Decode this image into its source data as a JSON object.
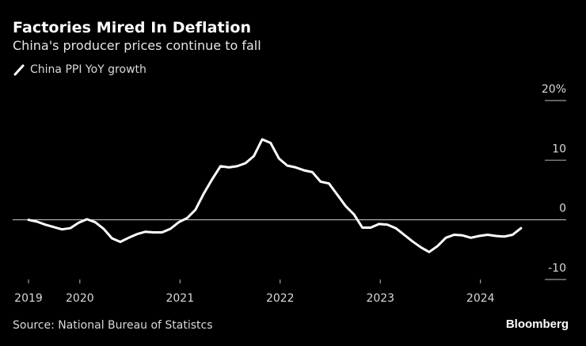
{
  "header": {
    "title": "Factories Mired In Deflation",
    "subtitle": "China's producer prices continue to fall"
  },
  "legend": {
    "items": [
      {
        "label": "China PPI YoY growth",
        "color": "#ffffff",
        "icon": "line-swatch-icon"
      }
    ]
  },
  "footer": {
    "source": "Source: National Bureau of Statistcs",
    "brand": "Bloomberg"
  },
  "chart_data": {
    "type": "line",
    "title": "Factories Mired In Deflation",
    "subtitle": "China's producer prices continue to fall",
    "xlabel": "",
    "ylabel": "",
    "ylim": [
      -10,
      20
    ],
    "yticks": [
      20,
      10,
      0,
      -10
    ],
    "ytick_labels": [
      "20%",
      "10",
      "0",
      "-10"
    ],
    "y_axis_side": "right",
    "grid": "horizontal",
    "legend_position": "top-left",
    "xticks": [
      "2019",
      "2020",
      "2021",
      "2022",
      "2023",
      "2024"
    ],
    "x_start": "2019-06",
    "series": [
      {
        "name": "China PPI YoY growth",
        "color": "#ffffff",
        "x": [
          "2019-06",
          "2019-07",
          "2019-08",
          "2019-09",
          "2019-10",
          "2019-11",
          "2019-12",
          "2020-01",
          "2020-02",
          "2020-03",
          "2020-04",
          "2020-05",
          "2020-06",
          "2020-07",
          "2020-08",
          "2020-09",
          "2020-10",
          "2020-11",
          "2020-12",
          "2021-01",
          "2021-02",
          "2021-03",
          "2021-04",
          "2021-05",
          "2021-06",
          "2021-07",
          "2021-08",
          "2021-09",
          "2021-10",
          "2021-11",
          "2021-12",
          "2022-01",
          "2022-02",
          "2022-03",
          "2022-04",
          "2022-05",
          "2022-06",
          "2022-07",
          "2022-08",
          "2022-09",
          "2022-10",
          "2022-11",
          "2022-12",
          "2023-01",
          "2023-02",
          "2023-03",
          "2023-04",
          "2023-05",
          "2023-06",
          "2023-07",
          "2023-08",
          "2023-09",
          "2023-10",
          "2023-11",
          "2023-12",
          "2024-01",
          "2024-02",
          "2024-03",
          "2024-04",
          "2024-05"
        ],
        "values": [
          0.0,
          -0.3,
          -0.8,
          -1.2,
          -1.6,
          -1.4,
          -0.5,
          0.1,
          -0.4,
          -1.5,
          -3.1,
          -3.7,
          -3.0,
          -2.4,
          -2.0,
          -2.1,
          -2.1,
          -1.5,
          -0.4,
          0.3,
          1.7,
          4.4,
          6.8,
          9.0,
          8.8,
          9.0,
          9.5,
          10.7,
          13.5,
          12.9,
          10.3,
          9.1,
          8.8,
          8.3,
          8.0,
          6.4,
          6.1,
          4.2,
          2.3,
          0.9,
          -1.3,
          -1.3,
          -0.7,
          -0.8,
          -1.4,
          -2.5,
          -3.6,
          -4.6,
          -5.4,
          -4.4,
          -3.0,
          -2.5,
          -2.6,
          -3.0,
          -2.7,
          -2.5,
          -2.7,
          -2.8,
          -2.5,
          -1.4
        ]
      }
    ]
  }
}
